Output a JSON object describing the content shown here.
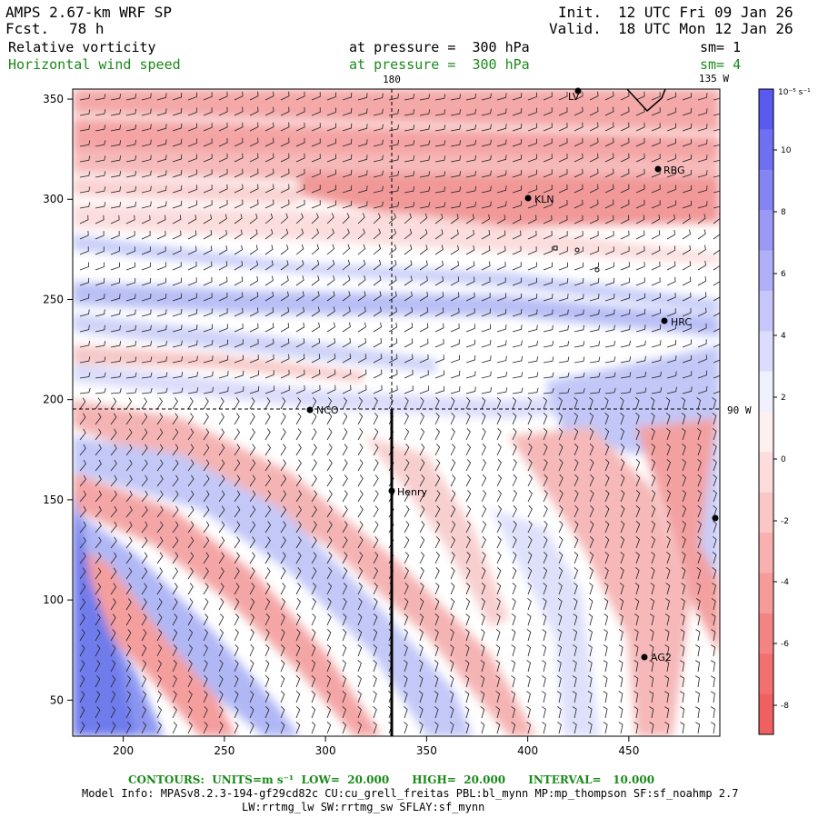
{
  "header": {
    "model": "AMPS 2.67-km WRF SP",
    "fcst_label": "Fcst.",
    "fcst_value": "78 h",
    "init_label": "Init.",
    "init_value": "12 UTC Fri 09 Jan 26",
    "valid_label": "Valid.",
    "valid_value": "18 UTC Mon 12 Jan 26",
    "field1": "Relative vorticity",
    "field1_level": "at pressure =  300 hPa",
    "field1_sm": "sm= 1",
    "field2": "Horizontal wind speed",
    "field2_level": "at pressure =  300 hPa",
    "field2_sm": "sm= 4"
  },
  "map": {
    "x_ticks": [
      "200",
      "250",
      "300",
      "350",
      "400",
      "450"
    ],
    "y_ticks": [
      "50",
      "100",
      "150",
      "200",
      "250",
      "300",
      "350"
    ],
    "meridian_label": "180",
    "meridian_135": "135 W",
    "parallel_label": "90 W",
    "stations": [
      {
        "name": "RBG"
      },
      {
        "name": "KLN"
      },
      {
        "name": "HRC"
      },
      {
        "name": "NCO"
      },
      {
        "name": "Henry"
      },
      {
        "name": "AG2"
      },
      {
        "name": "LV"
      }
    ]
  },
  "colorbar": {
    "units": "10⁻⁵ s⁻¹",
    "labels": [
      "10",
      "8",
      "6",
      "4",
      "2",
      "0",
      "-2",
      "-4",
      "-6",
      "-8"
    ],
    "positive_color": "#5050f0",
    "negative_color": "#f06060"
  },
  "footer": {
    "contours": "CONTOURS:  UNITS=m s⁻¹  LOW=  20.000      HIGH=  20.000      INTERVAL=   10.000",
    "model_info_1": "Model Info: MPASv8.2.3-194-gf29cd82c CU:cu_grell_freitas PBL:bl_mynn MP:mp_thompson SF:sf_noahmp 2.7",
    "model_info_2": "LW:rrtmg_lw SW:rrtmg_sw SFLAY:sf_mynn"
  }
}
